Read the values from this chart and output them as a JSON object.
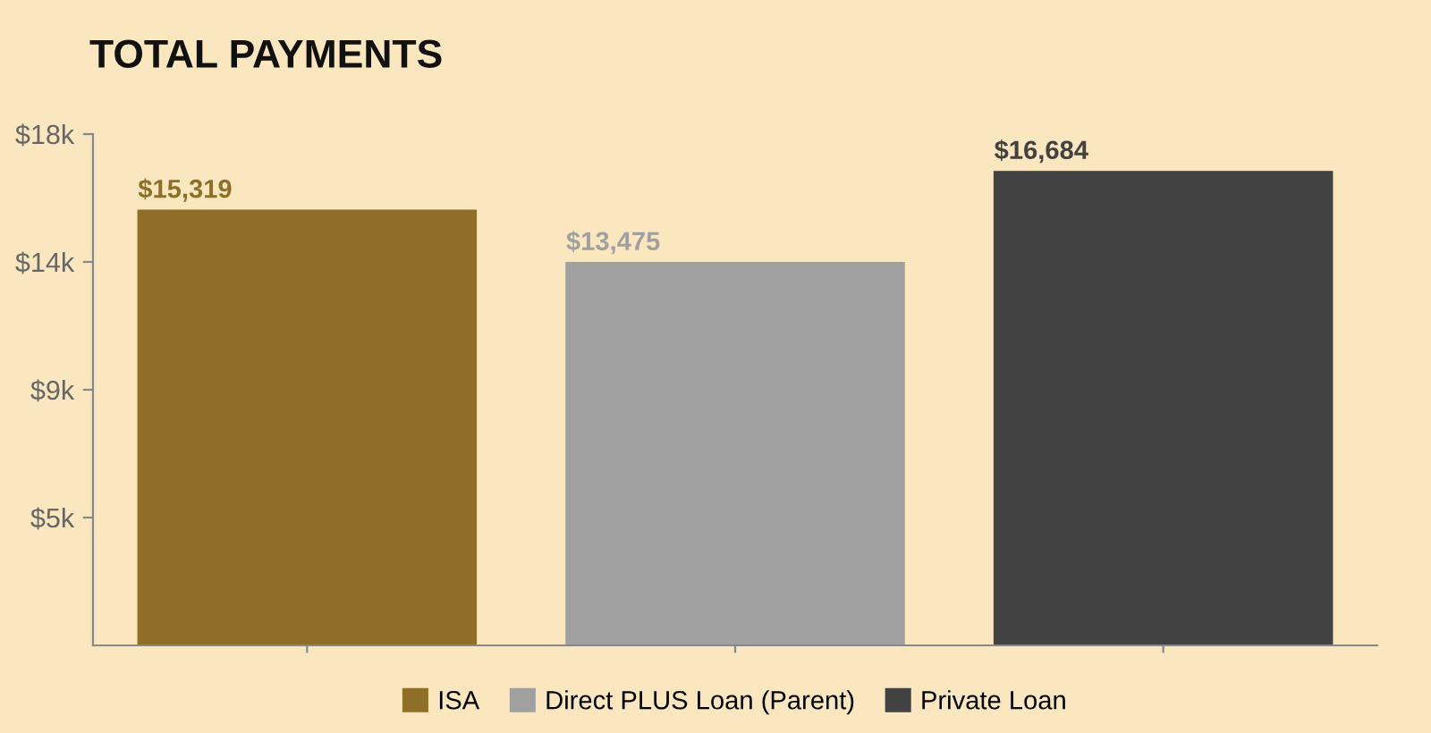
{
  "chart_data": {
    "type": "bar",
    "title": "TOTAL PAYMENTS",
    "categories": [
      null,
      null,
      null
    ],
    "series": [
      {
        "name": "ISA",
        "color": "#8f6f28",
        "values": [
          15319,
          null,
          null
        ],
        "value_labels": [
          "$15,319",
          null,
          null
        ]
      },
      {
        "name": "Direct PLUS Loan (Parent)",
        "color": "#a0a0a0",
        "values": [
          null,
          13475,
          null
        ],
        "value_labels": [
          null,
          "$13,475",
          null
        ]
      },
      {
        "name": "Private Loan",
        "color": "#424242",
        "values": [
          null,
          null,
          16684
        ],
        "value_labels": [
          null,
          null,
          "$16,684"
        ]
      }
    ],
    "stacked": true,
    "ylim": [
      0,
      18000
    ],
    "yticks": [
      {
        "value": 4500,
        "label": "$5k"
      },
      {
        "value": 9000,
        "label": "$9k"
      },
      {
        "value": 13500,
        "label": "$14k"
      },
      {
        "value": 18000,
        "label": "$18k"
      }
    ],
    "grid": false,
    "legend": "bottom"
  }
}
